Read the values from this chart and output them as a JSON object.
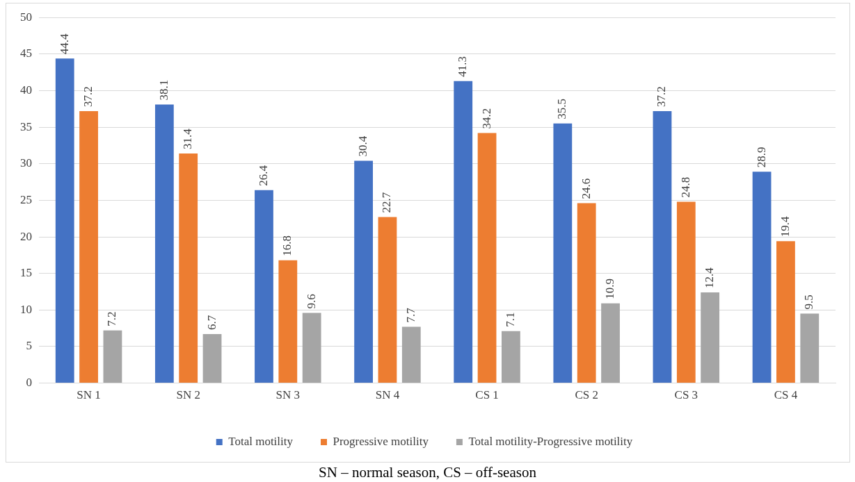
{
  "chart_data": {
    "type": "bar",
    "categories": [
      "SN 1",
      "SN 2",
      "SN 3",
      "SN 4",
      "CS 1",
      "CS 2",
      "CS 3",
      "CS 4"
    ],
    "series": [
      {
        "name": "Total motility",
        "color": "#4472c4",
        "values": [
          44.4,
          38.1,
          26.4,
          30.4,
          41.3,
          35.5,
          37.2,
          28.9
        ]
      },
      {
        "name": "Progressive motility",
        "color": "#ed7d31",
        "values": [
          37.2,
          31.4,
          16.8,
          22.7,
          34.2,
          24.6,
          24.8,
          19.4
        ]
      },
      {
        "name": "Total motility-Progressive motility",
        "color": "#a5a5a5",
        "values": [
          7.2,
          6.7,
          9.6,
          7.7,
          7.1,
          10.9,
          12.4,
          9.5
        ]
      }
    ],
    "ylim": [
      0,
      50
    ],
    "yticks": [
      0,
      5,
      10,
      15,
      20,
      25,
      30,
      35,
      40,
      45,
      50
    ],
    "grid": "y",
    "legend": "bottom",
    "data_labels": true,
    "annotations": [
      "SN – normal season, CS – off-season"
    ]
  }
}
